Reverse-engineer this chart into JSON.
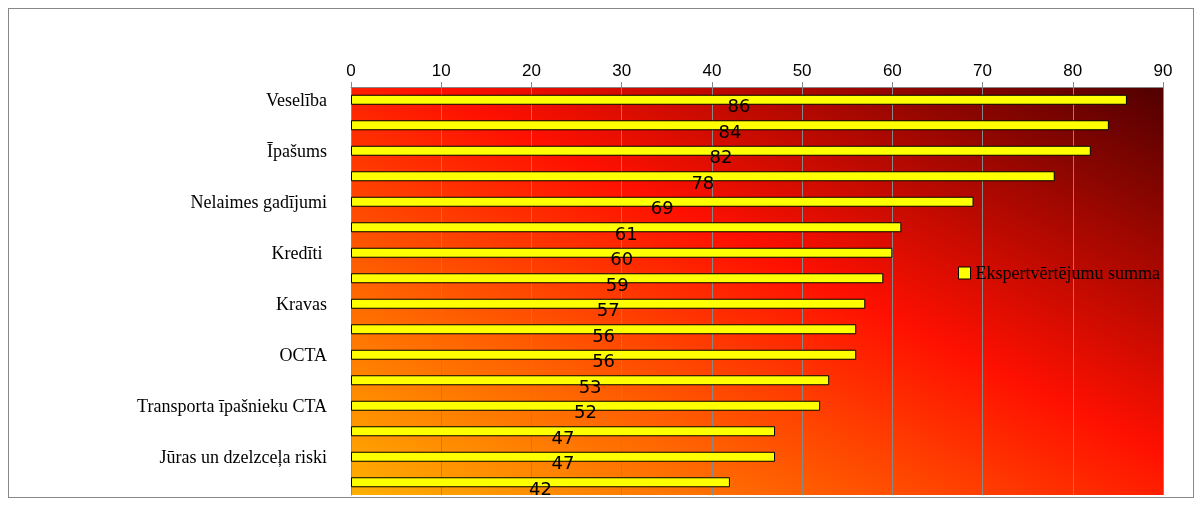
{
  "chart_data": {
    "type": "bar",
    "orientation": "horizontal",
    "categories": [
      "Veselība",
      null,
      "Īpašums",
      null,
      "Nelaimes gadījumi",
      null,
      "Kredīti ",
      null,
      "Kravas",
      null,
      "OCTA",
      null,
      "Transporta īpašnieku CTA",
      null,
      "Jūras un dzelzceļa riski",
      null
    ],
    "series": [
      {
        "name": "Ekspertvērtējumu summa",
        "color": "#ffff00",
        "values": [
          86,
          84,
          82,
          78,
          69,
          61,
          60,
          59,
          57,
          56,
          56,
          53,
          52,
          47,
          47,
          42
        ]
      }
    ],
    "xlim": [
      0,
      90
    ],
    "xticks": [
      0,
      10,
      20,
      30,
      40,
      50,
      60,
      70,
      80,
      90
    ],
    "grid": "x",
    "legend": "right",
    "data_labels": true
  }
}
